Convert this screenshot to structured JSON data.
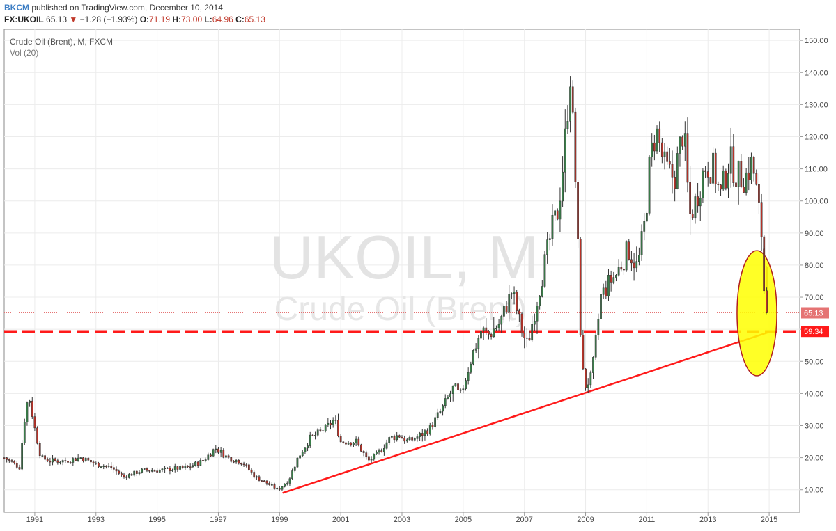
{
  "header": {
    "author": "BKCM",
    "published": "published on TradingView.com, December 10, 2014",
    "symbol": "FX:UKOIL",
    "last": "65.13",
    "change_arrow": "▼",
    "change": "−1.28 (−1.93%)",
    "o_label": "O:",
    "o_value": "71.19",
    "h_label": "H:",
    "h_value": "73.00",
    "l_label": "L:",
    "l_value": "64.96",
    "c_label": "C:",
    "c_value": "65.13"
  },
  "legend": {
    "title": "Crude Oil (Brent), M, FXCM",
    "indicator": "Vol (20)"
  },
  "watermark": {
    "line1": "UKOIL, M",
    "line2": "Crude Oil (Brent)"
  },
  "colors": {
    "up": "#3a7f4a",
    "down": "#b83228",
    "support": "#ff1a1a",
    "ellipse_fill": "#ffff00",
    "ellipse_stroke": "#b01e1e",
    "price_label_bg": "#e57373",
    "support_label_bg": "#ff1a1a"
  },
  "chart_data": {
    "type": "candlestick",
    "title": "Crude Oil (Brent), M, FXCM",
    "interval": "monthly",
    "ylim": [
      3.0,
      153.5
    ],
    "xlim": [
      1990.0,
      2016.0
    ],
    "y_ticks": [
      "10.00",
      "20.00",
      "30.00",
      "40.00",
      "50.00",
      "60.00",
      "70.00",
      "80.00",
      "90.00",
      "100.00",
      "110.00",
      "120.00",
      "130.00",
      "140.00",
      "150.00"
    ],
    "x_ticks": [
      "1991",
      "1993",
      "1995",
      "1997",
      "1999",
      "2001",
      "2003",
      "2005",
      "2007",
      "2009",
      "2011",
      "2013",
      "2015"
    ],
    "last_price": 65.13,
    "last_price_label": "65.13",
    "support_level": 59.34,
    "support_label": "59.34",
    "trendline": {
      "start": [
        1999.1,
        9.0
      ],
      "end": [
        2014.95,
        59.0
      ]
    },
    "highlight_ellipse": {
      "center": [
        2014.6,
        65.0
      ],
      "span_years": 1.3,
      "span_price": 39.0
    },
    "price_path": [
      [
        1990.0,
        20
      ],
      [
        1990.5,
        17
      ],
      [
        1990.65,
        31
      ],
      [
        1990.8,
        40
      ],
      [
        1991.0,
        29
      ],
      [
        1991.2,
        20
      ],
      [
        1991.5,
        19
      ],
      [
        1992.0,
        19
      ],
      [
        1992.5,
        20
      ],
      [
        1993.0,
        18
      ],
      [
        1993.5,
        17
      ],
      [
        1993.9,
        14
      ],
      [
        1994.5,
        16
      ],
      [
        1995.0,
        16
      ],
      [
        1995.5,
        16.5
      ],
      [
        1996.0,
        17
      ],
      [
        1996.5,
        19
      ],
      [
        1996.9,
        23
      ],
      [
        1997.3,
        20
      ],
      [
        1997.8,
        18.5
      ],
      [
        1998.2,
        14
      ],
      [
        1998.6,
        12
      ],
      [
        1998.95,
        10
      ],
      [
        1999.3,
        13
      ],
      [
        1999.6,
        20
      ],
      [
        2000.0,
        26
      ],
      [
        2000.5,
        29
      ],
      [
        2000.8,
        32
      ],
      [
        2001.0,
        25
      ],
      [
        2001.5,
        25
      ],
      [
        2001.9,
        19
      ],
      [
        2002.2,
        21
      ],
      [
        2002.6,
        26
      ],
      [
        2002.9,
        27
      ],
      [
        2003.2,
        25
      ],
      [
        2003.6,
        27
      ],
      [
        2003.9,
        29
      ],
      [
        2004.3,
        35
      ],
      [
        2004.7,
        42
      ],
      [
        2004.9,
        39
      ],
      [
        2005.3,
        52
      ],
      [
        2005.6,
        60
      ],
      [
        2005.8,
        58
      ],
      [
        2006.2,
        62
      ],
      [
        2006.6,
        72
      ],
      [
        2006.9,
        60
      ],
      [
        2007.1,
        55
      ],
      [
        2007.5,
        73
      ],
      [
        2007.9,
        91
      ],
      [
        2008.1,
        97
      ],
      [
        2008.3,
        115
      ],
      [
        2008.5,
        140
      ],
      [
        2008.7,
        100
      ],
      [
        2008.85,
        55
      ],
      [
        2008.95,
        42
      ],
      [
        2009.2,
        45
      ],
      [
        2009.5,
        70
      ],
      [
        2009.8,
        75
      ],
      [
        2010.0,
        77
      ],
      [
        2010.4,
        85
      ],
      [
        2010.7,
        79
      ],
      [
        2010.95,
        94
      ],
      [
        2011.1,
        112
      ],
      [
        2011.3,
        122
      ],
      [
        2011.6,
        110
      ],
      [
        2011.9,
        107
      ],
      [
        2012.2,
        123
      ],
      [
        2012.4,
        95
      ],
      [
        2012.6,
        100
      ],
      [
        2012.9,
        111
      ],
      [
        2013.2,
        110
      ],
      [
        2013.4,
        101
      ],
      [
        2013.7,
        113
      ],
      [
        2013.95,
        108
      ],
      [
        2014.2,
        107
      ],
      [
        2014.45,
        112
      ],
      [
        2014.6,
        102
      ],
      [
        2014.75,
        90
      ],
      [
        2014.85,
        78
      ],
      [
        2014.92,
        65.13
      ]
    ]
  }
}
